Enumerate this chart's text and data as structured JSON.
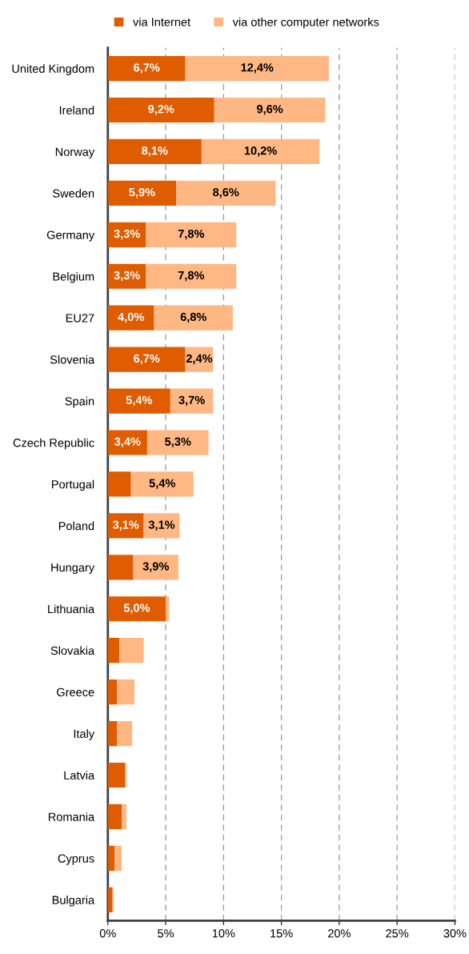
{
  "chart_data": {
    "type": "bar",
    "orientation": "horizontal",
    "stacked": true,
    "legend": "top",
    "grid": "x",
    "line_style": "dashed",
    "categories": [
      "United Kingdom",
      "Ireland",
      "Norway",
      "Sweden",
      "Germany",
      "Belgium",
      "EU27",
      "Slovenia",
      "Spain",
      "Czech Republic",
      "Portugal",
      "Poland",
      "Hungary",
      "Lithuania",
      "Slovakia",
      "Greece",
      "Italy",
      "Latvia",
      "Romania",
      "Cyprus",
      "Bulgaria"
    ],
    "xlim": [
      0,
      30
    ],
    "xticks": [
      {
        "value": 0,
        "label": "0%"
      },
      {
        "value": 5,
        "label": "5%"
      },
      {
        "value": 10,
        "label": "10%"
      },
      {
        "value": 15,
        "label": "15%"
      },
      {
        "value": 20,
        "label": "20%"
      },
      {
        "value": 25,
        "label": "25%"
      },
      {
        "value": 30,
        "label": "30%"
      }
    ],
    "series": [
      {
        "name": "via Internet",
        "color": "#e05c00",
        "values": [
          6.7,
          9.2,
          8.1,
          5.9,
          3.3,
          3.3,
          4.0,
          6.7,
          5.4,
          3.4,
          2.0,
          3.1,
          2.2,
          5.0,
          1.0,
          0.8,
          0.8,
          1.5,
          1.2,
          0.6,
          0.4
        ],
        "value_labels": [
          "6,7%",
          "9,2%",
          "8,1%",
          "5,9%",
          "3,3%",
          "3,3%",
          "4,0%",
          "6,7%",
          "5,4%",
          "3,4%",
          null,
          "3,1%",
          null,
          "5,0%",
          null,
          null,
          null,
          null,
          null,
          null,
          null
        ]
      },
      {
        "name": "via other computer networks",
        "color": "#ffb784",
        "values": [
          12.4,
          9.6,
          10.2,
          8.6,
          7.8,
          7.8,
          6.8,
          2.4,
          3.7,
          5.3,
          5.4,
          3.1,
          3.9,
          0.3,
          2.1,
          1.5,
          1.3,
          0.1,
          0.4,
          0.6,
          0.1
        ],
        "value_labels": [
          "12,4%",
          "9,6%",
          "10,2%",
          "8,6%",
          "7,8%",
          "7,8%",
          "6,8%",
          "2,4%",
          "3,7%",
          "5,3%",
          "5,4%",
          "3,1%",
          "3,9%",
          null,
          null,
          null,
          null,
          null,
          null,
          null,
          null
        ]
      }
    ]
  }
}
